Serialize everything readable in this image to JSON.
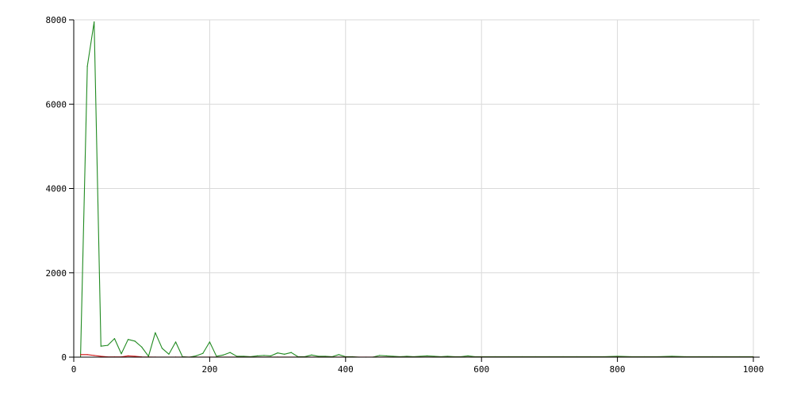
{
  "chart_data": {
    "type": "line",
    "title": "",
    "xlabel": "",
    "ylabel": "",
    "xlim": [
      0,
      1000
    ],
    "ylim": [
      0,
      8000
    ],
    "x_ticks": [
      0,
      200,
      400,
      600,
      800,
      1000
    ],
    "y_ticks": [
      0,
      2000,
      4000,
      6000,
      8000
    ],
    "grid": true,
    "series": [
      {
        "color": "#208a20",
        "x": [
          10,
          20,
          30,
          40,
          50,
          60,
          70,
          80,
          90,
          100,
          110,
          120,
          130,
          140,
          150,
          160,
          170,
          180,
          190,
          200,
          210,
          220,
          230,
          240,
          250,
          260,
          270,
          280,
          290,
          300,
          310,
          320,
          330,
          340,
          350,
          360,
          370,
          380,
          390,
          400,
          410,
          420,
          430,
          440,
          450,
          460,
          470,
          480,
          490,
          500,
          510,
          520,
          530,
          540,
          550,
          560,
          570,
          580,
          590,
          600,
          620,
          640,
          660,
          680,
          700,
          720,
          740,
          760,
          780,
          800,
          820,
          840,
          860,
          880,
          900,
          920,
          940,
          960,
          980,
          1000
        ],
        "values": [
          20,
          6900,
          7950,
          260,
          280,
          440,
          80,
          420,
          380,
          240,
          20,
          580,
          210,
          70,
          360,
          10,
          0,
          30,
          90,
          360,
          20,
          50,
          110,
          20,
          20,
          10,
          30,
          40,
          30,
          100,
          70,
          110,
          10,
          10,
          50,
          20,
          20,
          10,
          60,
          10,
          10,
          0,
          0,
          0,
          40,
          30,
          20,
          10,
          20,
          10,
          20,
          30,
          20,
          10,
          20,
          10,
          10,
          30,
          10,
          10,
          10,
          10,
          10,
          10,
          10,
          10,
          10,
          10,
          10,
          20,
          10,
          10,
          10,
          20,
          10,
          10,
          10,
          10,
          10,
          10
        ]
      },
      {
        "color": "#d01010",
        "x": [
          10,
          20,
          30,
          40,
          50,
          60,
          70,
          80,
          90,
          100,
          120,
          150,
          200,
          300,
          400,
          600,
          800,
          1000
        ],
        "values": [
          60,
          60,
          40,
          20,
          5,
          5,
          5,
          30,
          20,
          5,
          2,
          2,
          2,
          2,
          2,
          2,
          2,
          2
        ]
      }
    ]
  }
}
